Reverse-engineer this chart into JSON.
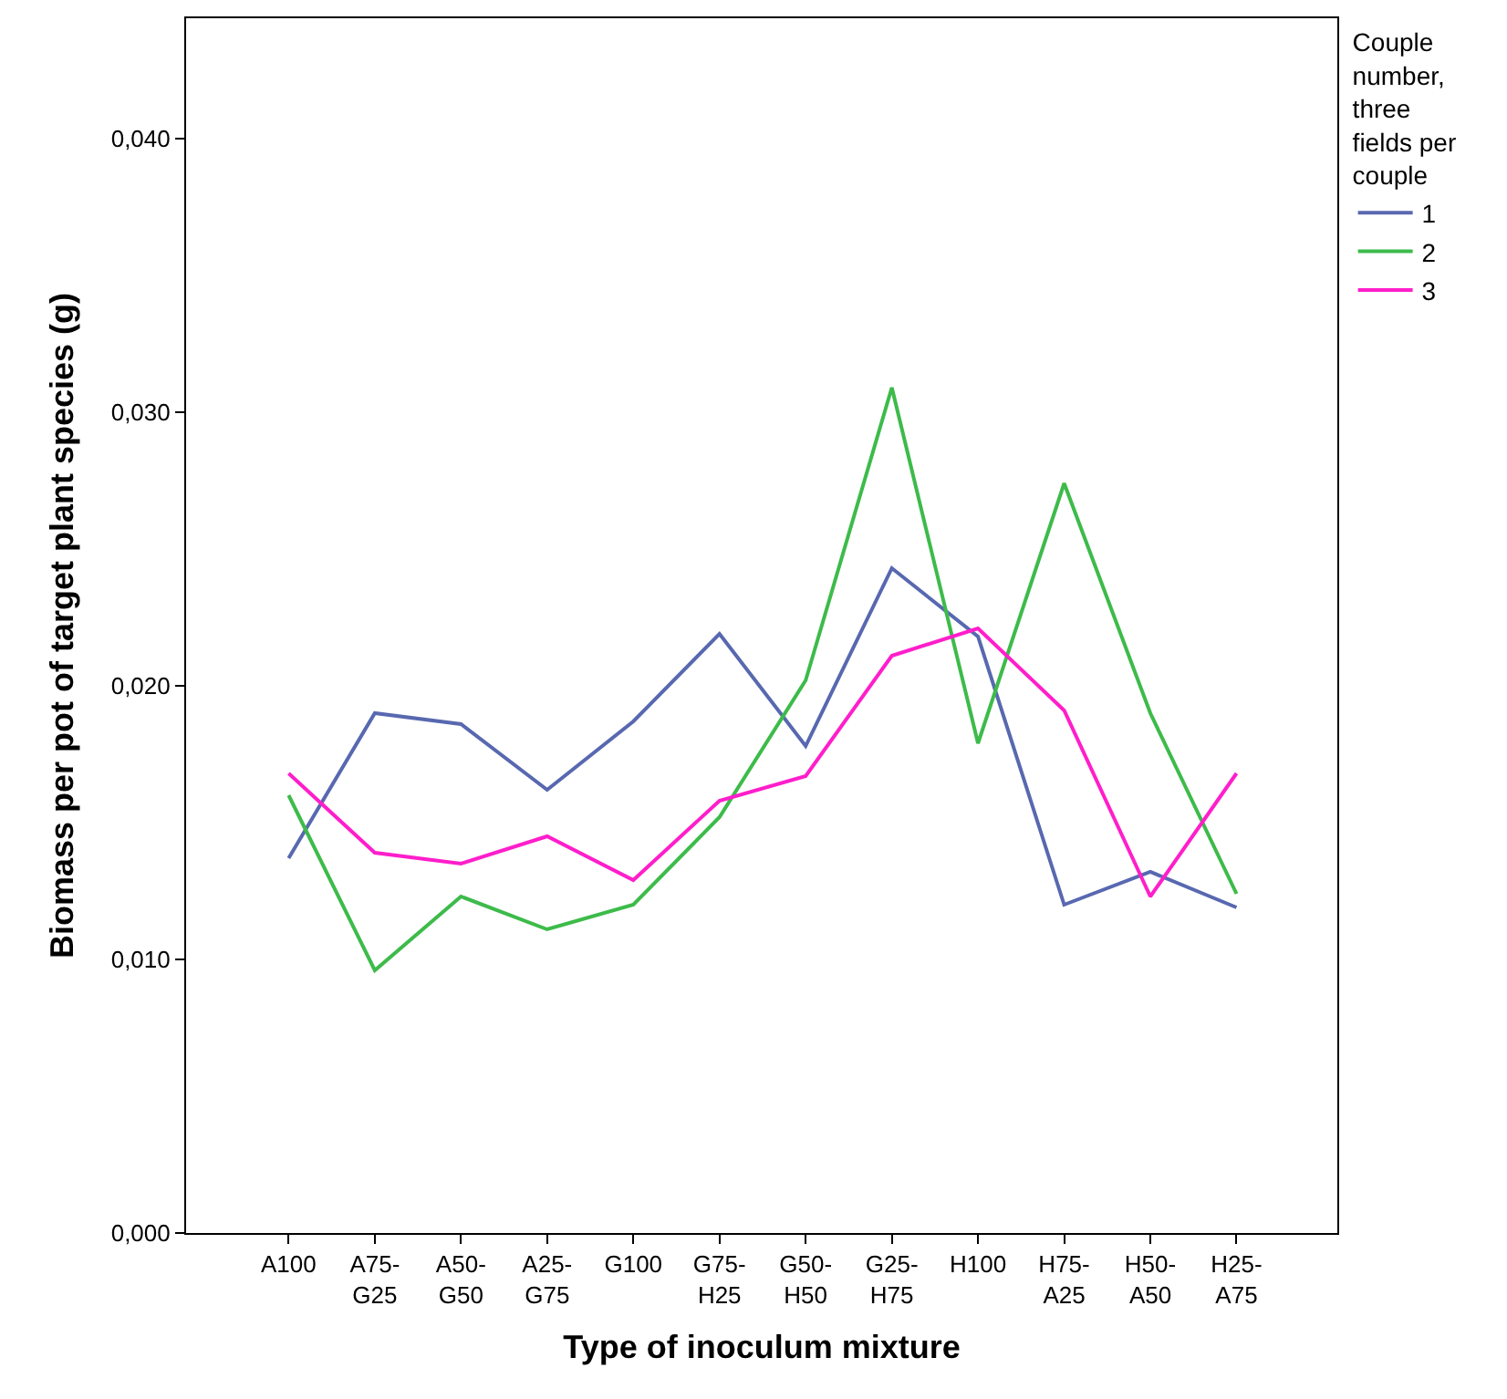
{
  "chart_data": {
    "type": "line",
    "xlabel": "Type of inoculum mixture",
    "ylabel": "Biomass per pot of target plant species (g)",
    "legend_title": "Couple number, three fields per couple",
    "categories": [
      "A100",
      "A75-G25",
      "A50-G50",
      "A25-G75",
      "G100",
      "G75-H25",
      "G50-H50",
      "G25-H75",
      "H100",
      "H75-A25",
      "H50-A50",
      "H25-A75"
    ],
    "series": [
      {
        "name": "1",
        "color": "#5868b0",
        "values": [
          0.0137,
          0.019,
          0.0186,
          0.0162,
          0.0187,
          0.0219,
          0.0178,
          0.0243,
          0.0218,
          0.012,
          0.0132,
          0.0119
        ]
      },
      {
        "name": "2",
        "color": "#3dbb4a",
        "values": [
          0.016,
          0.0096,
          0.0123,
          0.0111,
          0.012,
          0.0152,
          0.0202,
          0.0309,
          0.0179,
          0.0274,
          0.019,
          0.0124
        ]
      },
      {
        "name": "3",
        "color": "#ff1ecb",
        "values": [
          0.0168,
          0.0139,
          0.0135,
          0.0145,
          0.0129,
          0.0158,
          0.0167,
          0.0211,
          0.0221,
          0.0191,
          0.0123,
          0.0168
        ]
      }
    ],
    "ylim": [
      0,
      0.0444
    ],
    "yticks": [
      {
        "value": 0,
        "label": "0,000"
      },
      {
        "value": 0.01,
        "label": "0,010"
      },
      {
        "value": 0.02,
        "label": "0,020"
      },
      {
        "value": 0.03,
        "label": "0,030"
      },
      {
        "value": 0.04,
        "label": "0,040"
      }
    ],
    "legend": "top right",
    "marker": "none",
    "line_style": "solid"
  }
}
